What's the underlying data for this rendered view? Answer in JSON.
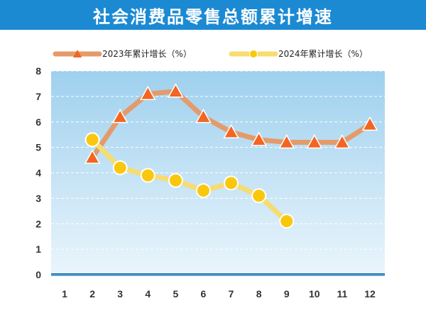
{
  "title": "社会消费品零售总额累计增速",
  "colors": {
    "title_bg": "#1b8ad3",
    "series_2023": "#e59a6a",
    "marker_2023": "#f26522",
    "series_2024": "#f7dc6f",
    "marker_2024": "#f9c80e",
    "plot_top": "#9ed0ee",
    "plot_bottom": "#e8f4fb",
    "axis": "#1a6fb0"
  },
  "chart_data": {
    "type": "line",
    "title": "社会消费品零售总额累计增速",
    "xlabel": "",
    "ylabel": "",
    "categories": [
      1,
      2,
      3,
      4,
      5,
      6,
      7,
      8,
      9,
      10,
      11,
      12
    ],
    "ylim": [
      0,
      8
    ],
    "yticks": [
      0,
      1,
      2,
      3,
      4,
      5,
      6,
      7,
      8
    ],
    "grid": "horizontal dashed",
    "legend_position": "top",
    "series": [
      {
        "name": "2023年累计增长（%）",
        "marker": "triangle",
        "values": [
          null,
          4.6,
          6.2,
          7.1,
          7.2,
          6.2,
          5.6,
          5.3,
          5.2,
          5.2,
          5.2,
          5.9
        ]
      },
      {
        "name": "2024年累计增长（%）",
        "marker": "circle",
        "values": [
          null,
          5.3,
          4.2,
          3.9,
          3.7,
          3.3,
          3.6,
          3.1,
          2.1,
          null,
          null,
          null
        ]
      }
    ]
  }
}
